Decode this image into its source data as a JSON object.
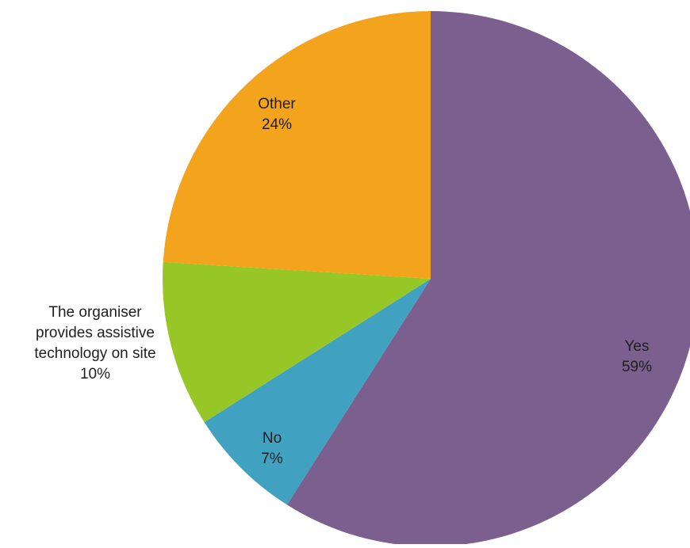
{
  "chart_data": {
    "type": "pie",
    "slices": [
      {
        "label": "Yes",
        "percent_label": "59%",
        "value": 59,
        "color": "#7b5f8e"
      },
      {
        "label": "No",
        "percent_label": "7%",
        "value": 7,
        "color": "#41a1c1"
      },
      {
        "label": "The organiser provides assistive technology on site",
        "label_lines": [
          "The organiser",
          "provides assistive",
          "technology on site"
        ],
        "percent_label": "10%",
        "value": 10,
        "color": "#97c627"
      },
      {
        "label": "Other",
        "percent_label": "24%",
        "value": 24,
        "color": "#f3a31c"
      }
    ],
    "start_angle_deg": 0,
    "direction": "clockwise",
    "legend": "none",
    "data_labels": "category and percentage"
  }
}
